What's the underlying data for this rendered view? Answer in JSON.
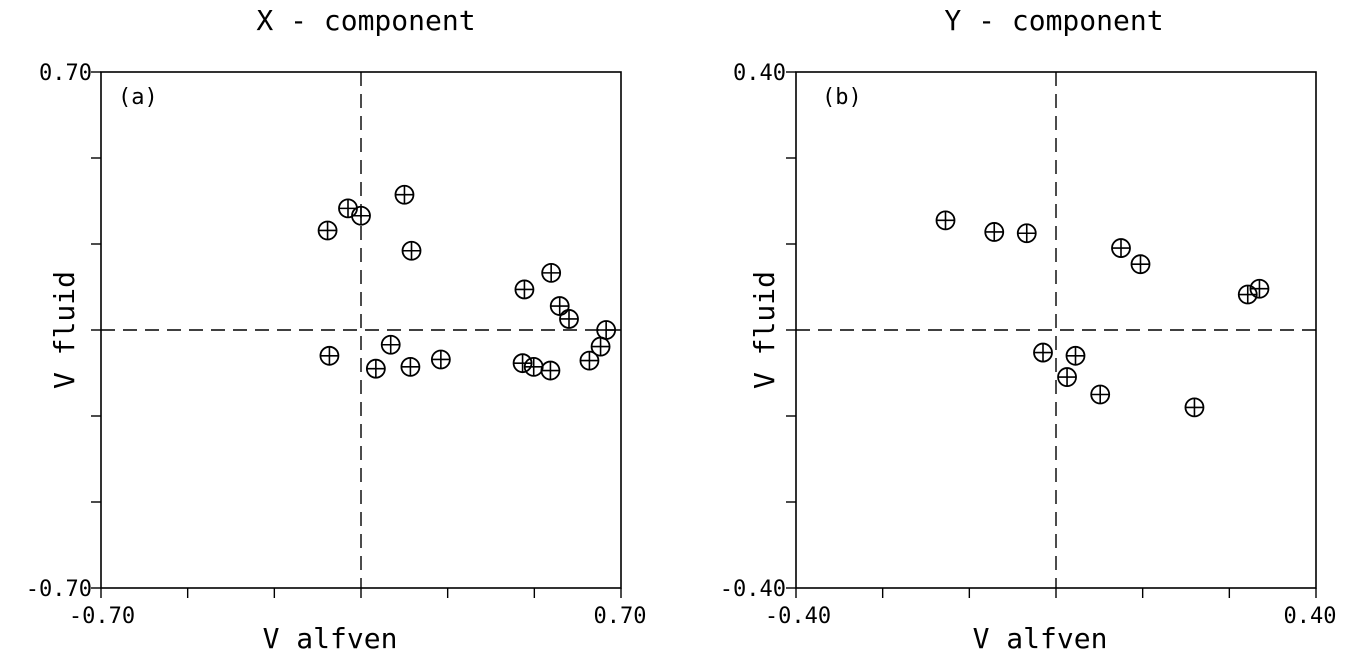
{
  "chart_data": [
    {
      "type": "scatter",
      "panel_label": "(a)",
      "title": "X - component",
      "xlabel": "V alfven",
      "ylabel": "V fluid",
      "xlim": [
        -0.7,
        0.7
      ],
      "ylim": [
        -0.7,
        0.7
      ],
      "x_tick_labels": [
        "-0.70",
        "0.70"
      ],
      "y_tick_labels": [
        "0.70",
        "-0.70"
      ],
      "minor_ticks": 6,
      "grid": false,
      "zero_lines": true,
      "marker": "circle-plus",
      "points": [
        {
          "x": -0.09,
          "y": 0.27
        },
        {
          "x": -0.035,
          "y": 0.33
        },
        {
          "x": 0.0,
          "y": 0.31
        },
        {
          "x": 0.117,
          "y": 0.367
        },
        {
          "x": 0.136,
          "y": 0.215
        },
        {
          "x": 0.44,
          "y": 0.11
        },
        {
          "x": 0.512,
          "y": 0.155
        },
        {
          "x": 0.535,
          "y": 0.065
        },
        {
          "x": 0.56,
          "y": 0.03
        },
        {
          "x": 0.645,
          "y": -0.045
        },
        {
          "x": 0.66,
          "y": 0.0
        },
        {
          "x": -0.085,
          "y": -0.07
        },
        {
          "x": 0.08,
          "y": -0.04
        },
        {
          "x": 0.04,
          "y": -0.105
        },
        {
          "x": 0.133,
          "y": -0.1
        },
        {
          "x": 0.215,
          "y": -0.08
        },
        {
          "x": 0.435,
          "y": -0.09
        },
        {
          "x": 0.465,
          "y": -0.1
        },
        {
          "x": 0.51,
          "y": -0.11
        },
        {
          "x": 0.615,
          "y": -0.083
        }
      ]
    },
    {
      "type": "scatter",
      "panel_label": "(b)",
      "title": "Y - component",
      "xlabel": "V alfven",
      "ylabel": "V fluid",
      "xlim": [
        -0.4,
        0.4
      ],
      "ylim": [
        -0.4,
        0.4
      ],
      "x_tick_labels": [
        "-0.40",
        "0.40"
      ],
      "y_tick_labels": [
        "0.40",
        "-0.40"
      ],
      "minor_ticks": 6,
      "grid": false,
      "zero_lines": true,
      "marker": "circle-plus",
      "points": [
        {
          "x": -0.17,
          "y": 0.17
        },
        {
          "x": -0.095,
          "y": 0.152
        },
        {
          "x": -0.045,
          "y": 0.15
        },
        {
          "x": 0.1,
          "y": 0.127
        },
        {
          "x": 0.13,
          "y": 0.102
        },
        {
          "x": 0.295,
          "y": 0.055
        },
        {
          "x": 0.313,
          "y": 0.064
        },
        {
          "x": -0.02,
          "y": -0.035
        },
        {
          "x": 0.03,
          "y": -0.04
        },
        {
          "x": 0.017,
          "y": -0.073
        },
        {
          "x": 0.068,
          "y": -0.1
        },
        {
          "x": 0.213,
          "y": -0.12
        }
      ]
    }
  ]
}
